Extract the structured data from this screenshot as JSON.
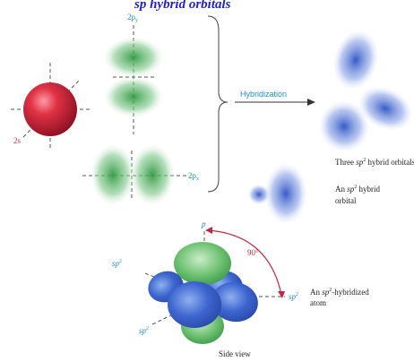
{
  "header_text": "sp hybrid orbitals",
  "labels": {
    "s_orbital": "2s",
    "py_orbital": "2p",
    "py_sub": "y",
    "px_orbital": "2p",
    "px_sub": "x",
    "hybridization": "Hybridization",
    "three_sp2_pre": "Three",
    "three_sp2_sp": "sp",
    "three_sp2_sup": "2",
    "three_sp2_post": "hybrid orbitals",
    "one_sp2_line1_pre": "An",
    "one_sp2_line1_sp": "sp",
    "one_sp2_line1_sup": "2",
    "one_sp2_line1_post": "hybrid",
    "one_sp2_line2": "orbital",
    "p_axis": "p",
    "angle": "90°",
    "sp2_left_sp": "sp",
    "sp2_left_sup": "2",
    "sp2_right_sp": "sp",
    "sp2_right_sup": "2",
    "sp2_lower_sp": "sp",
    "sp2_lower_sup": "2",
    "atom_line1_pre": "An",
    "atom_line1_sp": "sp",
    "atom_line1_sup": "2",
    "atom_line1_post": "-hybridized",
    "atom_line2": "atom",
    "side_view": "Side view"
  },
  "colors": {
    "s_orbital": "#d0283c",
    "p_orbital": "#3aa14a",
    "sp2_orbital": "#3b63c9",
    "accent_text": "#1f8fc7",
    "angle_arc": "#c02848",
    "header_text": "#2222cc"
  }
}
